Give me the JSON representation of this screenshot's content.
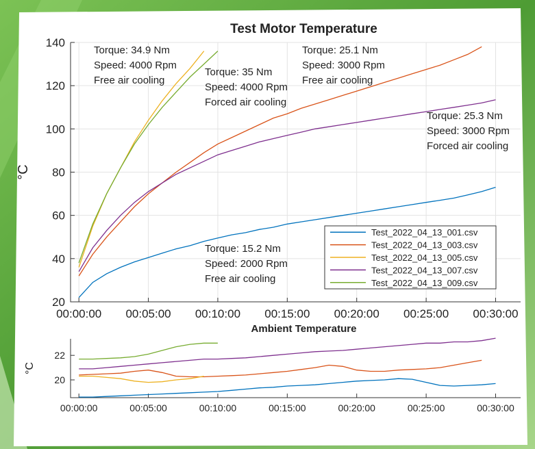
{
  "chart_data": [
    {
      "type": "line",
      "title": "Test Motor Temperature",
      "ylabel": "°C",
      "x": [
        0,
        1,
        2,
        3,
        4,
        5,
        6,
        7,
        8,
        9,
        10,
        11,
        12,
        13,
        14,
        15,
        16,
        17,
        18,
        19,
        20,
        21,
        22,
        23,
        24,
        25,
        26,
        27,
        28,
        29,
        30
      ],
      "xlim": [
        -0.6,
        31.8
      ],
      "xticks": [
        {
          "value": 0,
          "label": "00:00:00"
        },
        {
          "value": 5,
          "label": "00:05:00"
        },
        {
          "value": 10,
          "label": "00:10:00"
        },
        {
          "value": 15,
          "label": "00:15:00"
        },
        {
          "value": 20,
          "label": "00:20:00"
        },
        {
          "value": 25,
          "label": "00:25:00"
        },
        {
          "value": 30,
          "label": "00:30:00"
        }
      ],
      "ylim": [
        20,
        140
      ],
      "yticks": [
        20,
        40,
        60,
        80,
        100,
        120,
        140
      ],
      "grid": true,
      "legend": "lower right",
      "series": [
        {
          "name": "Test_2022_04_13_001.csv",
          "color": "#0072bd",
          "values": [
            22,
            29,
            33,
            36,
            38.5,
            40.5,
            42.5,
            44.5,
            46,
            48,
            49.5,
            51,
            52,
            53.5,
            54.5,
            56,
            57,
            58,
            59,
            60,
            61,
            62,
            63,
            64,
            65,
            66,
            67,
            68,
            69.5,
            71,
            73
          ]
        },
        {
          "name": "Test_2022_04_13_003.csv",
          "color": "#d95319",
          "values": [
            32,
            42,
            50,
            57,
            64,
            70,
            75,
            80,
            84.5,
            89,
            93,
            96,
            99,
            102,
            105,
            107,
            109.5,
            111.5,
            113.5,
            115.5,
            117.5,
            119.5,
            121.5,
            123.5,
            125.5,
            127.5,
            129.5,
            132,
            134.5,
            138,
            null
          ]
        },
        {
          "name": "Test_2022_04_13_005.csv",
          "color": "#edb120",
          "values": [
            36,
            55,
            70,
            82,
            94,
            104,
            113,
            121,
            128,
            136,
            null,
            null,
            null,
            null,
            null,
            null,
            null,
            null,
            null,
            null,
            null,
            null,
            null,
            null,
            null,
            null,
            null,
            null,
            null,
            null,
            null
          ]
        },
        {
          "name": "Test_2022_04_13_007.csv",
          "color": "#7e2f8e",
          "values": [
            34,
            45,
            53,
            60,
            66,
            71,
            75,
            79,
            82,
            85,
            88,
            90,
            92,
            94,
            95.5,
            97,
            98.5,
            100,
            101,
            102,
            103,
            104,
            105,
            106,
            107,
            108,
            109,
            110,
            111,
            112,
            113.5
          ]
        },
        {
          "name": "Test_2022_04_13_009.csv",
          "color": "#77ac30",
          "values": [
            38,
            56,
            70,
            82,
            93,
            102,
            110,
            117,
            124,
            130,
            136,
            null,
            null,
            null,
            null,
            null,
            null,
            null,
            null,
            null,
            null,
            null,
            null,
            null,
            null,
            null,
            null,
            null,
            null,
            null,
            null
          ]
        }
      ],
      "annotations": [
        [
          "Torque: 34.9 Nm",
          "Speed: 4000 Rpm",
          "Free air cooling"
        ],
        [
          "Torque: 35 Nm",
          "Speed: 4000 Rpm",
          "Forced air cooling"
        ],
        [
          "Torque: 25.1 Nm",
          "Speed: 3000 Rpm",
          "Free air cooling"
        ],
        [
          "Torque: 25.3 Nm",
          "Speed: 3000 Rpm",
          "Forced air cooling"
        ],
        [
          "Torque: 15.2 Nm",
          "Speed: 2000 Rpm",
          "Free air cooling"
        ]
      ]
    },
    {
      "type": "line",
      "title": "Ambient Temperature",
      "ylabel": "°C",
      "x": [
        0,
        1,
        2,
        3,
        4,
        5,
        6,
        7,
        8,
        9,
        10,
        11,
        12,
        13,
        14,
        15,
        16,
        17,
        18,
        19,
        20,
        21,
        22,
        23,
        24,
        25,
        26,
        27,
        28,
        29,
        30
      ],
      "xlim": [
        -0.6,
        31.8
      ],
      "xticks": [
        {
          "value": 0,
          "label": "00:00:00"
        },
        {
          "value": 5,
          "label": "00:05:00"
        },
        {
          "value": 10,
          "label": "00:10:00"
        },
        {
          "value": 15,
          "label": "00:15:00"
        },
        {
          "value": 20,
          "label": "00:20:00"
        },
        {
          "value": 25,
          "label": "00:25:00"
        },
        {
          "value": 30,
          "label": "00:30:00"
        }
      ],
      "ylim": [
        18.55,
        23.35
      ],
      "yticks": [
        20,
        22
      ],
      "grid": false,
      "series": [
        {
          "color": "#0072bd",
          "values": [
            18.6,
            18.6,
            18.65,
            18.7,
            18.75,
            18.8,
            18.85,
            18.9,
            18.95,
            19,
            19.05,
            19.15,
            19.25,
            19.35,
            19.4,
            19.5,
            19.55,
            19.6,
            19.7,
            19.8,
            19.9,
            19.95,
            20,
            20.1,
            20.05,
            19.8,
            19.55,
            19.5,
            19.55,
            19.6,
            19.7
          ]
        },
        {
          "color": "#d95319",
          "values": [
            20.4,
            20.45,
            20.5,
            20.55,
            20.7,
            20.8,
            20.6,
            20.3,
            20.25,
            20.25,
            20.3,
            20.35,
            20.4,
            20.5,
            20.6,
            20.7,
            20.85,
            21,
            21.2,
            21.1,
            20.8,
            20.7,
            20.7,
            20.8,
            20.85,
            20.9,
            21,
            21.2,
            21.4,
            21.6,
            null
          ]
        },
        {
          "color": "#edb120",
          "values": [
            20.3,
            20.3,
            20.2,
            20.1,
            19.9,
            19.8,
            19.85,
            20,
            20.1,
            20.3,
            null,
            null,
            null,
            null,
            null,
            null,
            null,
            null,
            null,
            null,
            null,
            null,
            null,
            null,
            null,
            null,
            null,
            null,
            null,
            null,
            null
          ]
        },
        {
          "color": "#7e2f8e",
          "values": [
            20.9,
            20.9,
            21,
            21.1,
            21.2,
            21.3,
            21.4,
            21.5,
            21.6,
            21.7,
            21.7,
            21.75,
            21.8,
            21.9,
            22,
            22.1,
            22.2,
            22.3,
            22.35,
            22.4,
            22.5,
            22.6,
            22.7,
            22.8,
            22.9,
            23,
            23,
            23.1,
            23.1,
            23.2,
            23.4
          ]
        },
        {
          "color": "#77ac30",
          "values": [
            21.7,
            21.7,
            21.75,
            21.8,
            21.9,
            22.1,
            22.4,
            22.7,
            22.9,
            23,
            23,
            null,
            null,
            null,
            null,
            null,
            null,
            null,
            null,
            null,
            null,
            null,
            null,
            null,
            null,
            null,
            null,
            null,
            null,
            null,
            null
          ]
        }
      ]
    }
  ]
}
